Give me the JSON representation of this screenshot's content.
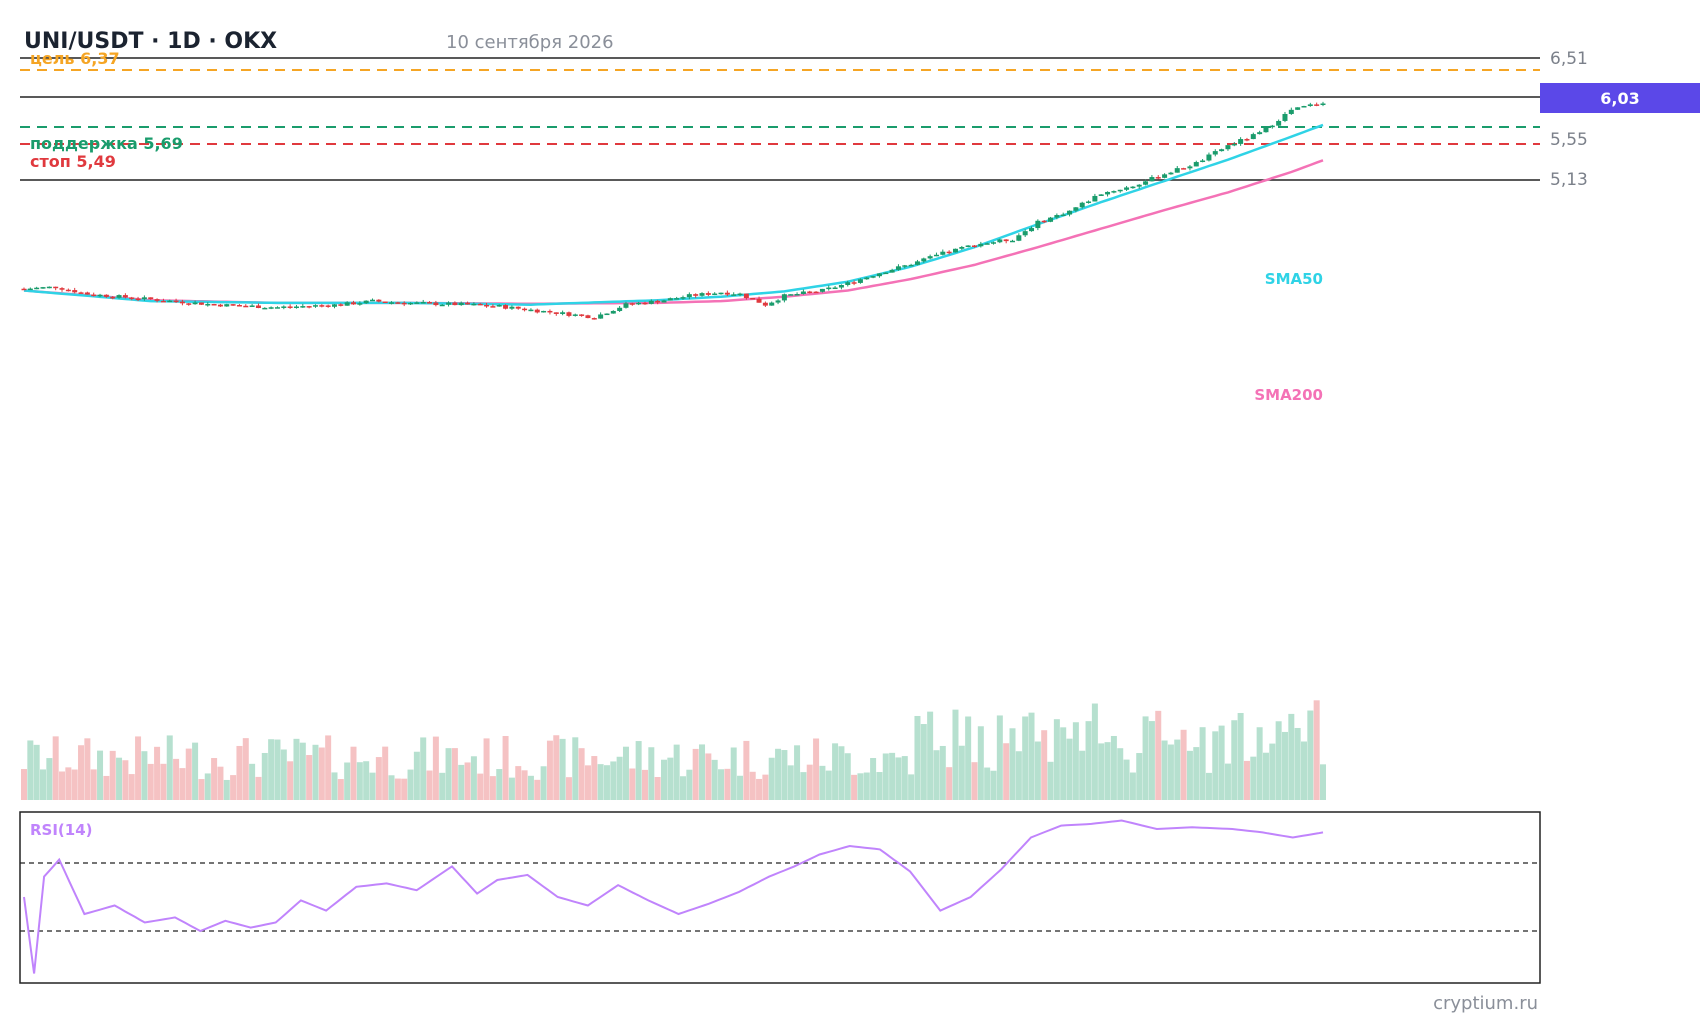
{
  "header": {
    "title": "UNI/USDT · 1D · OKX",
    "date": "10 сентября 2026"
  },
  "price_axis": {
    "ticks": [
      "6,51",
      "5,55",
      "5,13"
    ],
    "current_price": "6,03"
  },
  "levels": {
    "target": "цель 6,37",
    "support": "поддержка 5,69",
    "stop": "стоп 5,49"
  },
  "indicators": {
    "sma50": "SMA50",
    "sma200": "SMA200",
    "rsi": "RSI(14)"
  },
  "watermark": "cryptium.ru",
  "colors": {
    "up": "#1a9c6c",
    "down": "#e0393e",
    "sma50": "#2fd3e6",
    "sma200": "#f472b6",
    "rsi": "#c084fc",
    "target": "#f5a524",
    "support": "#1a9c6c",
    "stop": "#e0393e",
    "price_tag": "#5b48e8",
    "volume_up": "#b6e0cf",
    "volume_down": "#f5c2c3"
  },
  "chart_data": {
    "type": "candlestick",
    "symbol": "UNI/USDT",
    "timeframe": "1D",
    "exchange": "OKX",
    "candle_count": 200,
    "price_range": [
      3.2,
      6.6
    ],
    "key_levels": {
      "resistance_top": 6.51,
      "target": 6.37,
      "current": 6.03,
      "support": 5.69,
      "stop": 5.49,
      "level_low": 5.13
    },
    "price_path": [
      [
        0,
        3.9
      ],
      [
        5,
        3.92
      ],
      [
        10,
        3.84
      ],
      [
        20,
        3.78
      ],
      [
        30,
        3.72
      ],
      [
        40,
        3.69
      ],
      [
        50,
        3.72
      ],
      [
        55,
        3.76
      ],
      [
        60,
        3.74
      ],
      [
        70,
        3.72
      ],
      [
        75,
        3.7
      ],
      [
        80,
        3.66
      ],
      [
        85,
        3.62
      ],
      [
        90,
        3.58
      ],
      [
        95,
        3.72
      ],
      [
        100,
        3.76
      ],
      [
        105,
        3.82
      ],
      [
        110,
        3.86
      ],
      [
        113,
        3.84
      ],
      [
        117,
        3.72
      ],
      [
        120,
        3.82
      ],
      [
        126,
        3.88
      ],
      [
        130,
        3.96
      ],
      [
        135,
        4.08
      ],
      [
        140,
        4.18
      ],
      [
        145,
        4.3
      ],
      [
        150,
        4.4
      ],
      [
        156,
        4.46
      ],
      [
        160,
        4.65
      ],
      [
        165,
        4.78
      ],
      [
        170,
        4.98
      ],
      [
        175,
        5.06
      ],
      [
        180,
        5.2
      ],
      [
        185,
        5.32
      ],
      [
        190,
        5.52
      ],
      [
        195,
        5.66
      ],
      [
        200,
        5.92
      ],
      [
        206,
        6.03
      ]
    ],
    "sma50": [
      [
        0,
        3.88
      ],
      [
        20,
        3.76
      ],
      [
        40,
        3.74
      ],
      [
        60,
        3.74
      ],
      [
        80,
        3.72
      ],
      [
        100,
        3.77
      ],
      [
        110,
        3.81
      ],
      [
        120,
        3.87
      ],
      [
        130,
        3.98
      ],
      [
        140,
        4.15
      ],
      [
        150,
        4.37
      ],
      [
        160,
        4.63
      ],
      [
        170,
        4.88
      ],
      [
        180,
        5.12
      ],
      [
        190,
        5.36
      ],
      [
        200,
        5.62
      ],
      [
        206,
        5.78
      ]
    ],
    "sma200": [
      [
        0,
        3.88
      ],
      [
        20,
        3.77
      ],
      [
        40,
        3.74
      ],
      [
        60,
        3.74
      ],
      [
        80,
        3.73
      ],
      [
        100,
        3.74
      ],
      [
        110,
        3.76
      ],
      [
        120,
        3.81
      ],
      [
        130,
        3.88
      ],
      [
        140,
        4.01
      ],
      [
        150,
        4.17
      ],
      [
        160,
        4.37
      ],
      [
        170,
        4.58
      ],
      [
        180,
        4.79
      ],
      [
        190,
        4.99
      ],
      [
        200,
        5.22
      ],
      [
        206,
        5.38
      ]
    ],
    "rsi": {
      "range": [
        0,
        100
      ],
      "overbought": 70,
      "oversold": 30,
      "path": [
        [
          0,
          50
        ],
        [
          2,
          5
        ],
        [
          4,
          62
        ],
        [
          7,
          72
        ],
        [
          12,
          40
        ],
        [
          18,
          45
        ],
        [
          24,
          35
        ],
        [
          30,
          38
        ],
        [
          35,
          30
        ],
        [
          40,
          36
        ],
        [
          45,
          32
        ],
        [
          50,
          35
        ],
        [
          55,
          48
        ],
        [
          60,
          42
        ],
        [
          66,
          56
        ],
        [
          72,
          58
        ],
        [
          78,
          54
        ],
        [
          85,
          68
        ],
        [
          90,
          52
        ],
        [
          94,
          60
        ],
        [
          100,
          63
        ],
        [
          106,
          50
        ],
        [
          112,
          45
        ],
        [
          118,
          57
        ],
        [
          124,
          48
        ],
        [
          130,
          40
        ],
        [
          136,
          46
        ],
        [
          142,
          53
        ],
        [
          148,
          62
        ],
        [
          153,
          68
        ],
        [
          158,
          75
        ],
        [
          164,
          80
        ],
        [
          170,
          78
        ],
        [
          176,
          65
        ],
        [
          182,
          42
        ],
        [
          188,
          50
        ],
        [
          194,
          66
        ],
        [
          200,
          85
        ],
        [
          206,
          92
        ],
        [
          212,
          93
        ],
        [
          218,
          95
        ],
        [
          225,
          90
        ],
        [
          232,
          91
        ],
        [
          240,
          90
        ],
        [
          246,
          88
        ],
        [
          252,
          85
        ],
        [
          258,
          88
        ]
      ]
    }
  }
}
